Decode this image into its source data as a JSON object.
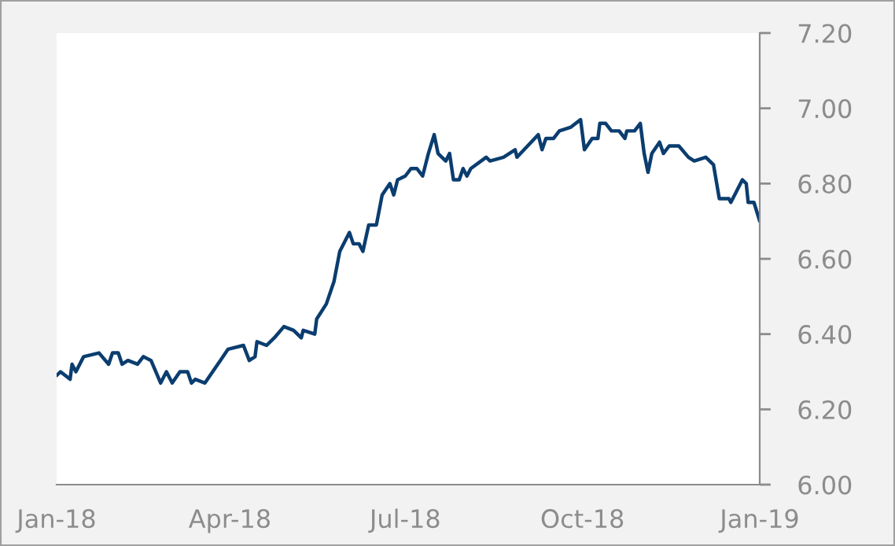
{
  "chart_data": {
    "type": "line",
    "x": [
      "2018-01-01",
      "2018-01-03",
      "2018-01-08",
      "2018-01-09",
      "2018-01-11",
      "2018-01-15",
      "2018-01-23",
      "2018-01-28",
      "2018-01-30",
      "2018-02-02",
      "2018-02-04",
      "2018-02-07",
      "2018-02-12",
      "2018-02-15",
      "2018-02-19",
      "2018-02-24",
      "2018-02-27",
      "2018-03-02",
      "2018-03-06",
      "2018-03-10",
      "2018-03-12",
      "2018-03-14",
      "2018-03-19",
      "2018-03-23",
      "2018-03-27",
      "2018-03-31",
      "2018-04-08",
      "2018-04-11",
      "2018-04-14",
      "2018-04-15",
      "2018-04-20",
      "2018-04-24",
      "2018-04-29",
      "2018-05-04",
      "2018-05-08",
      "2018-05-09",
      "2018-05-15",
      "2018-05-16",
      "2018-05-21",
      "2018-05-25",
      "2018-05-28",
      "2018-06-02",
      "2018-06-04",
      "2018-06-07",
      "2018-06-09",
      "2018-06-12",
      "2018-06-16",
      "2018-06-19",
      "2018-06-23",
      "2018-06-25",
      "2018-06-27",
      "2018-07-01",
      "2018-07-04",
      "2018-07-07",
      "2018-07-10",
      "2018-07-13",
      "2018-07-16",
      "2018-07-18",
      "2018-07-22",
      "2018-07-24",
      "2018-07-26",
      "2018-07-29",
      "2018-07-31",
      "2018-08-02",
      "2018-08-04",
      "2018-08-12",
      "2018-08-14",
      "2018-08-21",
      "2018-08-27",
      "2018-08-28",
      "2018-09-08",
      "2018-09-10",
      "2018-09-12",
      "2018-09-16",
      "2018-09-19",
      "2018-09-25",
      "2018-09-30",
      "2018-10-02",
      "2018-10-06",
      "2018-10-09",
      "2018-10-10",
      "2018-10-13",
      "2018-10-16",
      "2018-10-20",
      "2018-10-23",
      "2018-10-24",
      "2018-10-28",
      "2018-10-31",
      "2018-11-02",
      "2018-11-04",
      "2018-11-06",
      "2018-11-10",
      "2018-11-12",
      "2018-11-15",
      "2018-11-20",
      "2018-11-25",
      "2018-11-28",
      "2018-12-04",
      "2018-12-08",
      "2018-12-11",
      "2018-12-16",
      "2018-12-17",
      "2018-12-19",
      "2018-12-23",
      "2018-12-25",
      "2018-12-26",
      "2018-12-29",
      "2019-01-01"
    ],
    "series": [
      {
        "color": "#0b3d6f",
        "values": [
          6.29,
          6.3,
          6.28,
          6.32,
          6.3,
          6.34,
          6.35,
          6.32,
          6.35,
          6.35,
          6.32,
          6.33,
          6.32,
          6.34,
          6.33,
          6.27,
          6.3,
          6.27,
          6.3,
          6.3,
          6.27,
          6.28,
          6.27,
          6.3,
          6.33,
          6.36,
          6.37,
          6.33,
          6.34,
          6.38,
          6.37,
          6.39,
          6.42,
          6.41,
          6.39,
          6.41,
          6.4,
          6.44,
          6.48,
          6.54,
          6.62,
          6.67,
          6.64,
          6.64,
          6.62,
          6.69,
          6.69,
          6.77,
          6.8,
          6.77,
          6.81,
          6.82,
          6.84,
          6.84,
          6.82,
          6.88,
          6.93,
          6.88,
          6.86,
          6.88,
          6.81,
          6.81,
          6.84,
          6.82,
          6.84,
          6.87,
          6.86,
          6.87,
          6.89,
          6.87,
          6.93,
          6.89,
          6.92,
          6.92,
          6.94,
          6.95,
          6.97,
          6.89,
          6.92,
          6.92,
          6.96,
          6.96,
          6.94,
          6.94,
          6.92,
          6.94,
          6.94,
          6.96,
          6.88,
          6.83,
          6.88,
          6.91,
          6.88,
          6.9,
          6.9,
          6.87,
          6.86,
          6.87,
          6.85,
          6.76,
          6.76,
          6.75,
          6.77,
          6.81,
          6.8,
          6.75,
          6.75,
          6.7
        ]
      }
    ],
    "xlim": [
      "2018-01-01",
      "2019-01-01"
    ],
    "xticks": [
      {
        "value": "2018-01-01",
        "label": "Jan-18"
      },
      {
        "value": "2018-04-01",
        "label": "Apr-18"
      },
      {
        "value": "2018-07-01",
        "label": "Jul-18"
      },
      {
        "value": "2018-10-01",
        "label": "Oct-18"
      },
      {
        "value": "2019-01-01",
        "label": "Jan-19"
      }
    ],
    "ylim": [
      6.0,
      7.2
    ],
    "yticks": [
      {
        "value": 6.0,
        "label": "6.00"
      },
      {
        "value": 6.2,
        "label": "6.20"
      },
      {
        "value": 6.4,
        "label": "6.40"
      },
      {
        "value": 6.6,
        "label": "6.60"
      },
      {
        "value": 6.8,
        "label": "6.80"
      },
      {
        "value": 7.0,
        "label": "7.00"
      },
      {
        "value": 7.2,
        "label": "7.20"
      }
    ],
    "grid": false,
    "legend": false
  }
}
